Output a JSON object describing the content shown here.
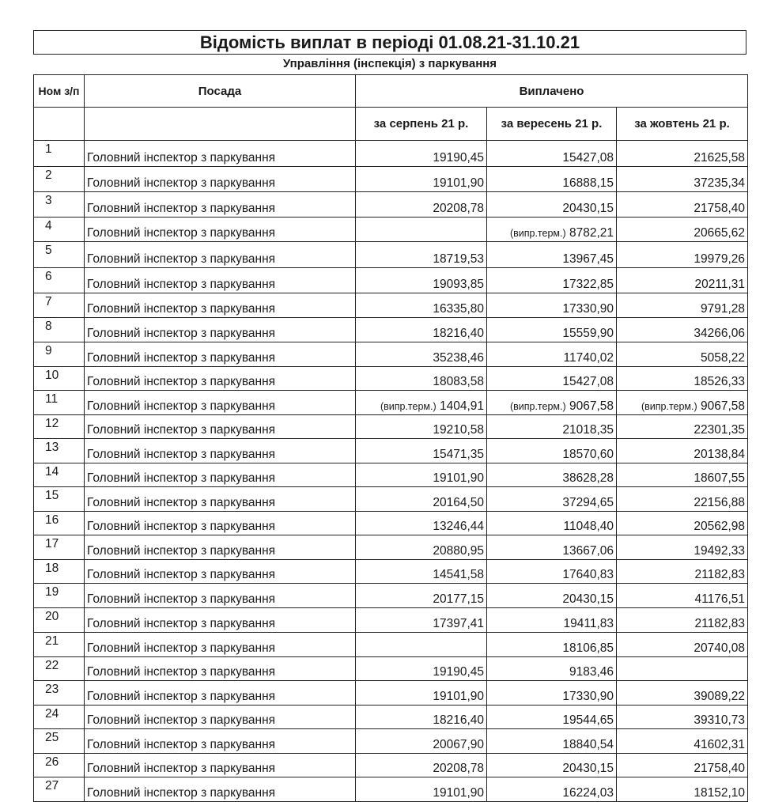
{
  "title": "Відомість виплат в періоді 01.08.21-31.10.21",
  "subtitle": "Управління (інспекція) з паркування",
  "table": {
    "headers": {
      "num": "Ном з/п",
      "position": "Посада",
      "paid": "Виплачено",
      "months": [
        "за серпень 21 р.",
        "за вересень 21 р.",
        "за жовтень 21 р."
      ]
    },
    "note_label": "(випр.терм.)",
    "rows": [
      {
        "n": "1",
        "pos": "Головний інспектор з паркування",
        "v": [
          [
            "",
            "19190,45"
          ],
          [
            "",
            "15427,08"
          ],
          [
            "",
            "21625,58"
          ]
        ]
      },
      {
        "n": "2",
        "pos": "Головний інспектор з паркування",
        "v": [
          [
            "",
            "19101,90"
          ],
          [
            "",
            "16888,15"
          ],
          [
            "",
            "37235,34"
          ]
        ]
      },
      {
        "n": "3",
        "pos": "Головний інспектор з паркування",
        "v": [
          [
            "",
            "20208,78"
          ],
          [
            "",
            "20430,15"
          ],
          [
            "",
            "21758,40"
          ]
        ]
      },
      {
        "n": "4",
        "pos": "Головний інспектор з паркування",
        "v": [
          [
            "",
            ""
          ],
          [
            "(випр.терм.)",
            "8782,21"
          ],
          [
            "",
            "20665,62"
          ]
        ]
      },
      {
        "n": "5",
        "pos": "Головний інспектор з паркування",
        "v": [
          [
            "",
            "18719,53"
          ],
          [
            "",
            "13967,45"
          ],
          [
            "",
            "19979,26"
          ]
        ]
      },
      {
        "n": "6",
        "pos": "Головний інспектор з паркування",
        "v": [
          [
            "",
            "19093,85"
          ],
          [
            "",
            "17322,85"
          ],
          [
            "",
            "20211,31"
          ]
        ]
      },
      {
        "n": "7",
        "pos": "Головний інспектор з паркування",
        "v": [
          [
            "",
            "16335,80"
          ],
          [
            "",
            "17330,90"
          ],
          [
            "",
            "9791,28"
          ]
        ]
      },
      {
        "n": "8",
        "pos": "Головний інспектор з паркування",
        "v": [
          [
            "",
            "18216,40"
          ],
          [
            "",
            "15559,90"
          ],
          [
            "",
            "34266,06"
          ]
        ]
      },
      {
        "n": "9",
        "pos": "Головний інспектор з паркування",
        "v": [
          [
            "",
            "35238,46"
          ],
          [
            "",
            "11740,02"
          ],
          [
            "",
            "5058,22"
          ]
        ]
      },
      {
        "n": "10",
        "pos": "Головний інспектор з паркування",
        "v": [
          [
            "",
            "18083,58"
          ],
          [
            "",
            "15427,08"
          ],
          [
            "",
            "18526,33"
          ]
        ]
      },
      {
        "n": "11",
        "pos": "Головний інспектор з паркування",
        "v": [
          [
            "(випр.терм.)",
            "1404,91"
          ],
          [
            "(випр.терм.)",
            "9067,58"
          ],
          [
            "(випр.терм.)",
            "9067,58"
          ]
        ]
      },
      {
        "n": "12",
        "pos": "Головний інспектор з паркування",
        "v": [
          [
            "",
            "19210,58"
          ],
          [
            "",
            "21018,35"
          ],
          [
            "",
            "22301,35"
          ]
        ]
      },
      {
        "n": "13",
        "pos": "Головний інспектор з паркування",
        "v": [
          [
            "",
            "15471,35"
          ],
          [
            "",
            "18570,60"
          ],
          [
            "",
            "20138,84"
          ]
        ]
      },
      {
        "n": "14",
        "pos": "Головний інспектор з паркування",
        "v": [
          [
            "",
            "19101,90"
          ],
          [
            "",
            "38628,28"
          ],
          [
            "",
            "18607,55"
          ]
        ]
      },
      {
        "n": "15",
        "pos": "Головний інспектор з паркування",
        "v": [
          [
            "",
            "20164,50"
          ],
          [
            "",
            "37294,65"
          ],
          [
            "",
            "22156,88"
          ]
        ]
      },
      {
        "n": "16",
        "pos": "Головний інспектор з паркування",
        "v": [
          [
            "",
            "13246,44"
          ],
          [
            "",
            "11048,40"
          ],
          [
            "",
            "20562,98"
          ]
        ]
      },
      {
        "n": "17",
        "pos": "Головний інспектор з паркування",
        "v": [
          [
            "",
            "20880,95"
          ],
          [
            "",
            "13667,06"
          ],
          [
            "",
            "19492,33"
          ]
        ]
      },
      {
        "n": "18",
        "pos": "Головний інспектор з паркування",
        "v": [
          [
            "",
            "14541,58"
          ],
          [
            "",
            "17640,83"
          ],
          [
            "",
            "21182,83"
          ]
        ]
      },
      {
        "n": "19",
        "pos": "Головний інспектор з паркування",
        "v": [
          [
            "",
            "20177,15"
          ],
          [
            "",
            "20430,15"
          ],
          [
            "",
            "41176,51"
          ]
        ]
      },
      {
        "n": "20",
        "pos": "Головний інспектор з паркування",
        "v": [
          [
            "",
            "17397,41"
          ],
          [
            "",
            "19411,83"
          ],
          [
            "",
            "21182,83"
          ]
        ]
      },
      {
        "n": "21",
        "pos": "Головний інспектор з паркування",
        "v": [
          [
            "",
            ""
          ],
          [
            "",
            "18106,85"
          ],
          [
            "",
            "20740,08"
          ]
        ]
      },
      {
        "n": "22",
        "pos": "Головний інспектор з паркування",
        "v": [
          [
            "",
            "19190,45"
          ],
          [
            "",
            "9183,46"
          ],
          [
            "",
            ""
          ]
        ]
      },
      {
        "n": "23",
        "pos": "Головний інспектор з паркування",
        "v": [
          [
            "",
            "19101,90"
          ],
          [
            "",
            "17330,90"
          ],
          [
            "",
            "39089,22"
          ]
        ]
      },
      {
        "n": "24",
        "pos": "Головний інспектор з паркування",
        "v": [
          [
            "",
            "18216,40"
          ],
          [
            "",
            "19544,65"
          ],
          [
            "",
            "39310,73"
          ]
        ]
      },
      {
        "n": "25",
        "pos": "Головний інспектор з паркування",
        "v": [
          [
            "",
            "20067,90"
          ],
          [
            "",
            "18840,54"
          ],
          [
            "",
            "41602,31"
          ]
        ]
      },
      {
        "n": "26",
        "pos": "Головний інспектор з паркування",
        "v": [
          [
            "",
            "20208,78"
          ],
          [
            "",
            "20430,15"
          ],
          [
            "",
            "21758,40"
          ]
        ]
      },
      {
        "n": "27",
        "pos": "Головний інспектор з паркування",
        "v": [
          [
            "",
            "19101,90"
          ],
          [
            "",
            "16224,03"
          ],
          [
            "",
            "18152,10"
          ]
        ]
      }
    ]
  }
}
